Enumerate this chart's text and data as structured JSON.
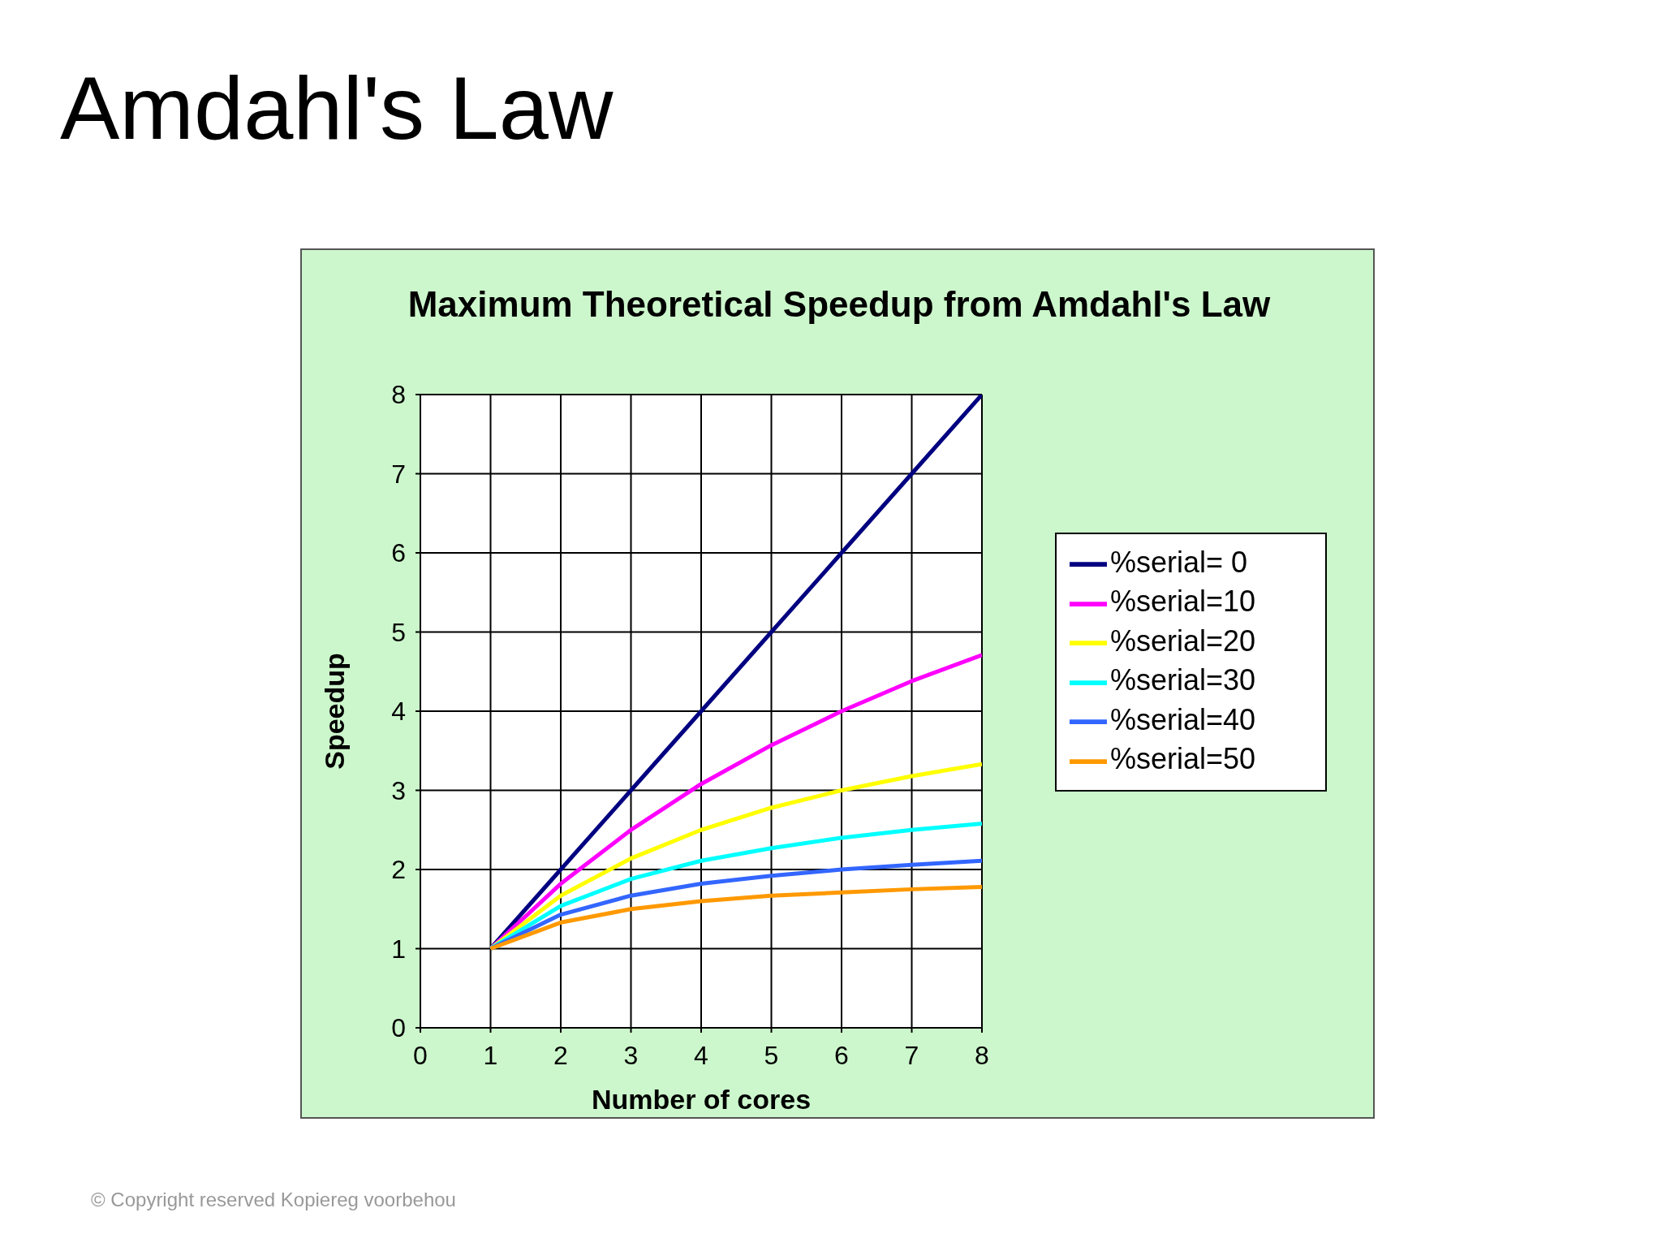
{
  "chart_data": {
    "type": "line",
    "title": "Maximum Theoretical Speedup from Amdahl's Law",
    "xlabel": "Number of cores",
    "ylabel": "Speedup",
    "annotations": [
      "Amdahl's Law",
      "© Copyright reserved Kopiereg voorbehou"
    ],
    "x": [
      1,
      2,
      3,
      4,
      5,
      6,
      7,
      8
    ],
    "series": [
      {
        "name": "%serial= 0",
        "color": "#000080",
        "values": [
          1,
          2,
          3,
          4,
          5,
          6,
          7,
          8
        ]
      },
      {
        "name": "%serial=10",
        "color": "#ff00ff",
        "values": [
          1,
          1.82,
          2.5,
          3.08,
          3.57,
          4,
          4.38,
          4.71
        ]
      },
      {
        "name": "%serial=20",
        "color": "#ffff00",
        "values": [
          1,
          1.67,
          2.14,
          2.5,
          2.78,
          3,
          3.18,
          3.33
        ]
      },
      {
        "name": "%serial=30",
        "color": "#00ffff",
        "values": [
          1,
          1.54,
          1.88,
          2.11,
          2.27,
          2.4,
          2.5,
          2.58
        ]
      },
      {
        "name": "%serial=40",
        "color": "#3366ff",
        "values": [
          1,
          1.43,
          1.67,
          1.82,
          1.92,
          2,
          2.06,
          2.11
        ]
      },
      {
        "name": "%serial=50",
        "color": "#ff9900",
        "values": [
          1,
          1.33,
          1.5,
          1.6,
          1.67,
          1.71,
          1.75,
          1.78
        ]
      }
    ],
    "xlim": [
      0,
      8
    ],
    "xticks": [
      0,
      1,
      2,
      3,
      4,
      5,
      6,
      7,
      8
    ],
    "ylim": [
      0,
      8
    ],
    "yticks": [
      0,
      1,
      2,
      3,
      4,
      5,
      6,
      7,
      8
    ],
    "grid": true,
    "legend": "right"
  }
}
